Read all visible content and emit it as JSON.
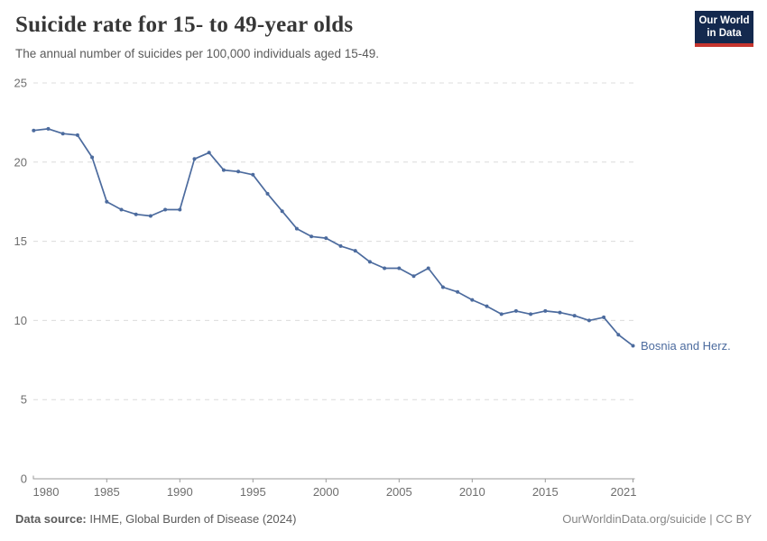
{
  "header": {
    "title": "Suicide rate for 15- to 49-year olds",
    "subtitle": "The annual number of suicides per 100,000 individuals aged 15-49."
  },
  "logo": {
    "line1": "Our World",
    "line2": "in Data",
    "background": "#14294e",
    "stripe": "#c6352e"
  },
  "colors": {
    "line": "#4c6b9e",
    "grid": "#dcdcdc",
    "axis": "#9a9a9a",
    "tick_text": "#6e6e6e"
  },
  "chart_data": {
    "type": "line",
    "title": "Suicide rate for 15- to 49-year olds",
    "subtitle": "The annual number of suicides per 100,000 individuals aged 15-49.",
    "xlabel": "",
    "ylabel": "",
    "xlim": [
      1980,
      2021
    ],
    "ylim": [
      0,
      25
    ],
    "grid": "horizontal dashed",
    "legend_position": "end-of-line label",
    "yticks": [
      0,
      5,
      10,
      15,
      20,
      25
    ],
    "xticks": [
      1980,
      1985,
      1990,
      1995,
      2000,
      2005,
      2010,
      2015,
      2021
    ],
    "x": [
      1980,
      1981,
      1982,
      1983,
      1984,
      1985,
      1986,
      1987,
      1988,
      1989,
      1990,
      1991,
      1992,
      1993,
      1994,
      1995,
      1996,
      1997,
      1998,
      1999,
      2000,
      2001,
      2002,
      2003,
      2004,
      2005,
      2006,
      2007,
      2008,
      2009,
      2010,
      2011,
      2012,
      2013,
      2014,
      2015,
      2016,
      2017,
      2018,
      2019,
      2020,
      2021
    ],
    "series": [
      {
        "name": "Bosnia and Herz.",
        "color": "#4c6b9e",
        "values": [
          22.0,
          22.1,
          21.8,
          21.7,
          20.3,
          17.5,
          17.0,
          16.7,
          16.6,
          17.0,
          17.0,
          20.2,
          20.6,
          19.5,
          19.4,
          19.2,
          18.0,
          16.9,
          15.8,
          15.3,
          15.2,
          14.7,
          14.4,
          13.7,
          13.3,
          13.3,
          12.8,
          13.3,
          12.1,
          11.8,
          11.3,
          10.9,
          10.4,
          10.6,
          10.4,
          10.6,
          10.5,
          10.3,
          10.0,
          10.2,
          9.1,
          8.4
        ]
      }
    ]
  },
  "footer": {
    "source_label": "Data source:",
    "source_text": " IHME, Global Burden of Disease (2024)",
    "right_text": "OurWorldinData.org/suicide | CC BY"
  }
}
